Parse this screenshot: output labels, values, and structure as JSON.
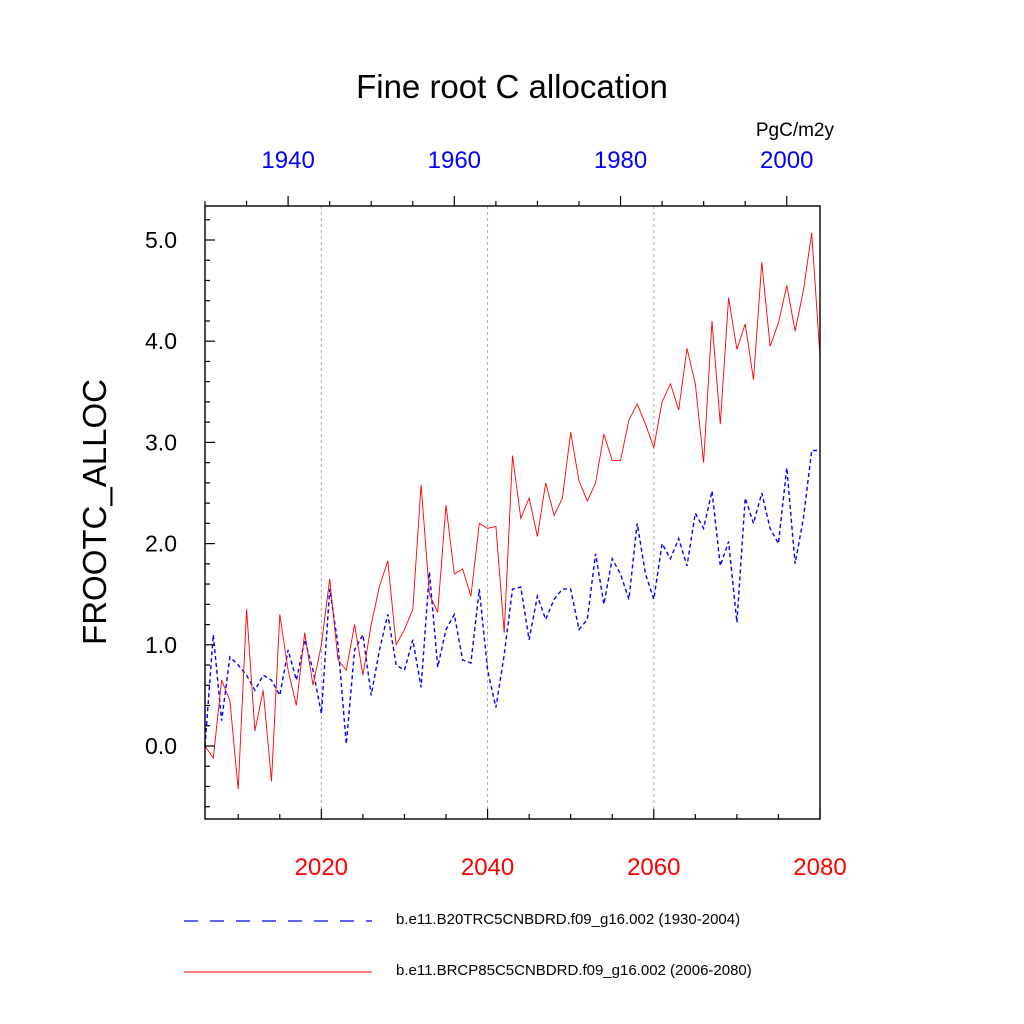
{
  "chart_data": {
    "type": "line",
    "title": "Fine root C allocation",
    "units": "PgC/m2y",
    "ylabel": "FROOTC_ALLOC",
    "ylim": [
      -0.7,
      5.35
    ],
    "yticks": [
      0.0,
      1.0,
      2.0,
      3.0,
      4.0,
      5.0
    ],
    "ytick_labels": [
      "0.0",
      "1.0",
      "2.0",
      "3.0",
      "4.0",
      "5.0"
    ],
    "bottom_axis": {
      "range": [
        2006,
        2080
      ],
      "ticks": [
        2020,
        2040,
        2060,
        2080
      ],
      "tick_labels": [
        "2020",
        "2040",
        "2060",
        "2080"
      ],
      "color": "#ff0000"
    },
    "top_axis": {
      "range": [
        1930,
        2004
      ],
      "ticks": [
        1940,
        1960,
        1980,
        2000
      ],
      "tick_labels": [
        "1940",
        "1960",
        "1980",
        "2000"
      ],
      "color": "#0000ff"
    },
    "grid": "vertical dotted at bottom-axis ticks",
    "series": [
      {
        "name": "b.e11.B20TRC5CNBDRD.f09_g16.002 (1930-2004)",
        "axis": "top",
        "color": "#0000ff",
        "dash": "dashed",
        "x_start": 1930,
        "values": [
          0.0,
          1.1,
          0.25,
          0.88,
          0.8,
          0.7,
          0.55,
          0.7,
          0.65,
          0.5,
          0.95,
          0.65,
          1.05,
          0.75,
          0.32,
          1.55,
          1.0,
          0.02,
          0.95,
          1.1,
          0.5,
          0.95,
          1.3,
          0.8,
          0.75,
          1.05,
          0.58,
          1.72,
          0.78,
          1.15,
          1.3,
          0.85,
          0.82,
          1.55,
          0.75,
          0.38,
          0.9,
          1.55,
          1.57,
          1.05,
          1.48,
          1.25,
          1.45,
          1.55,
          1.55,
          1.15,
          1.25,
          1.9,
          1.4,
          1.85,
          1.7,
          1.45,
          2.2,
          1.7,
          1.45,
          2.0,
          1.85,
          2.05,
          1.78,
          2.3,
          2.15,
          2.52,
          1.78,
          2.02,
          1.22,
          2.45,
          2.2,
          2.5,
          2.15,
          2.0,
          2.75,
          1.8,
          2.25,
          2.92,
          2.92
        ]
      },
      {
        "name": "b.e11.BRCP85C5CNBDRD.f09_g16.002 (2006-2080)",
        "axis": "bottom",
        "color": "#ff0000",
        "dash": "solid",
        "x_start": 2006,
        "values": [
          0.0,
          -0.12,
          0.65,
          0.45,
          -0.43,
          1.35,
          0.15,
          0.55,
          -0.35,
          1.3,
          0.75,
          0.4,
          1.12,
          0.6,
          1.0,
          1.65,
          0.85,
          0.75,
          1.2,
          0.7,
          1.2,
          1.58,
          1.83,
          1.0,
          1.15,
          1.35,
          2.58,
          1.5,
          1.32,
          2.38,
          1.7,
          1.75,
          1.48,
          2.2,
          2.15,
          2.17,
          1.12,
          2.87,
          2.25,
          2.45,
          2.07,
          2.6,
          2.28,
          2.45,
          3.1,
          2.62,
          2.42,
          2.6,
          3.08,
          2.82,
          2.82,
          3.22,
          3.38,
          3.18,
          2.95,
          3.4,
          3.58,
          3.32,
          3.93,
          3.58,
          2.8,
          4.2,
          3.18,
          4.43,
          3.92,
          4.17,
          3.62,
          4.78,
          3.95,
          4.18,
          4.55,
          4.1,
          4.5,
          5.07,
          3.85
        ]
      }
    ]
  },
  "legend": {
    "entries": [
      {
        "label": "b.e11.B20TRC5CNBDRD.f09_g16.002 (1930-2004)",
        "color": "#0000ff",
        "dash": "dashed"
      },
      {
        "label": "b.e11.BRCP85C5CNBDRD.f09_g16.002 (2006-2080)",
        "color": "#ff0000",
        "dash": "solid"
      }
    ]
  }
}
